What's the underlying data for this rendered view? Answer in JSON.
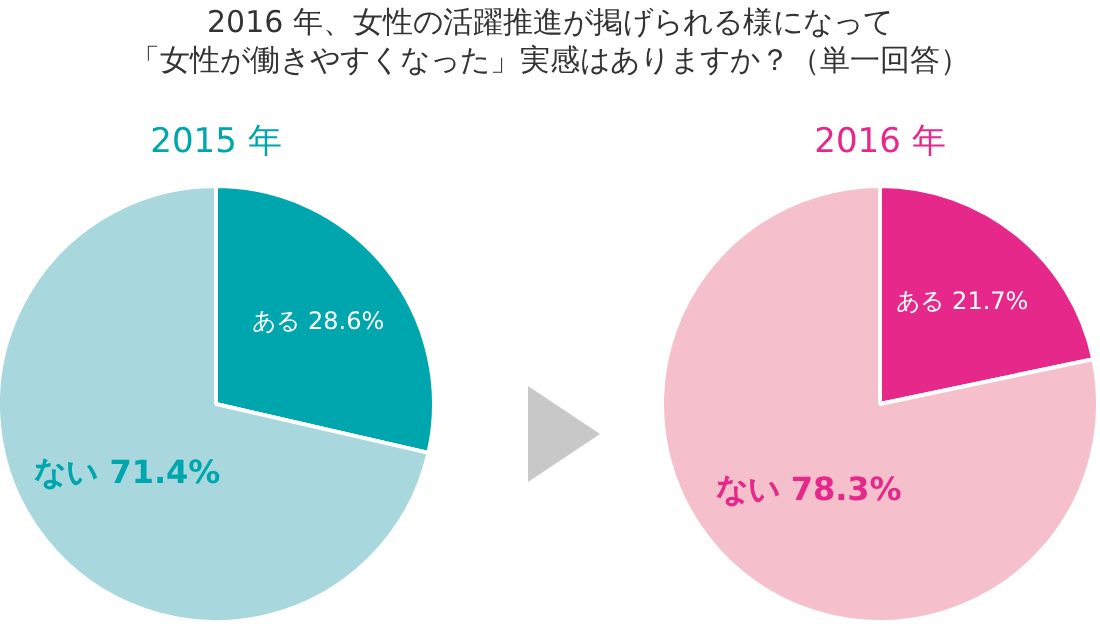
{
  "chart_data": [
    {
      "type": "other",
      "title": "2016 年、女性の活躍推進が掲げられる様になって",
      "subtitle": "「女性が働きやすくなった」実感はありますか？（単一回答）"
    },
    {
      "type": "pie",
      "title": "2015 年",
      "categories": [
        "ある",
        "ない"
      ],
      "values": [
        28.6,
        71.4
      ],
      "colors": [
        "#00a6ad",
        "#a8d8de"
      ],
      "value_labels": [
        "28.6%",
        "71.4%"
      ]
    },
    {
      "type": "pie",
      "title": "2016 年",
      "categories": [
        "ある",
        "ない"
      ],
      "values": [
        21.7,
        78.3
      ],
      "colors": [
        "#e5288a",
        "#f5bfcc"
      ],
      "value_labels": [
        "21.7%",
        "78.3%"
      ]
    }
  ]
}
